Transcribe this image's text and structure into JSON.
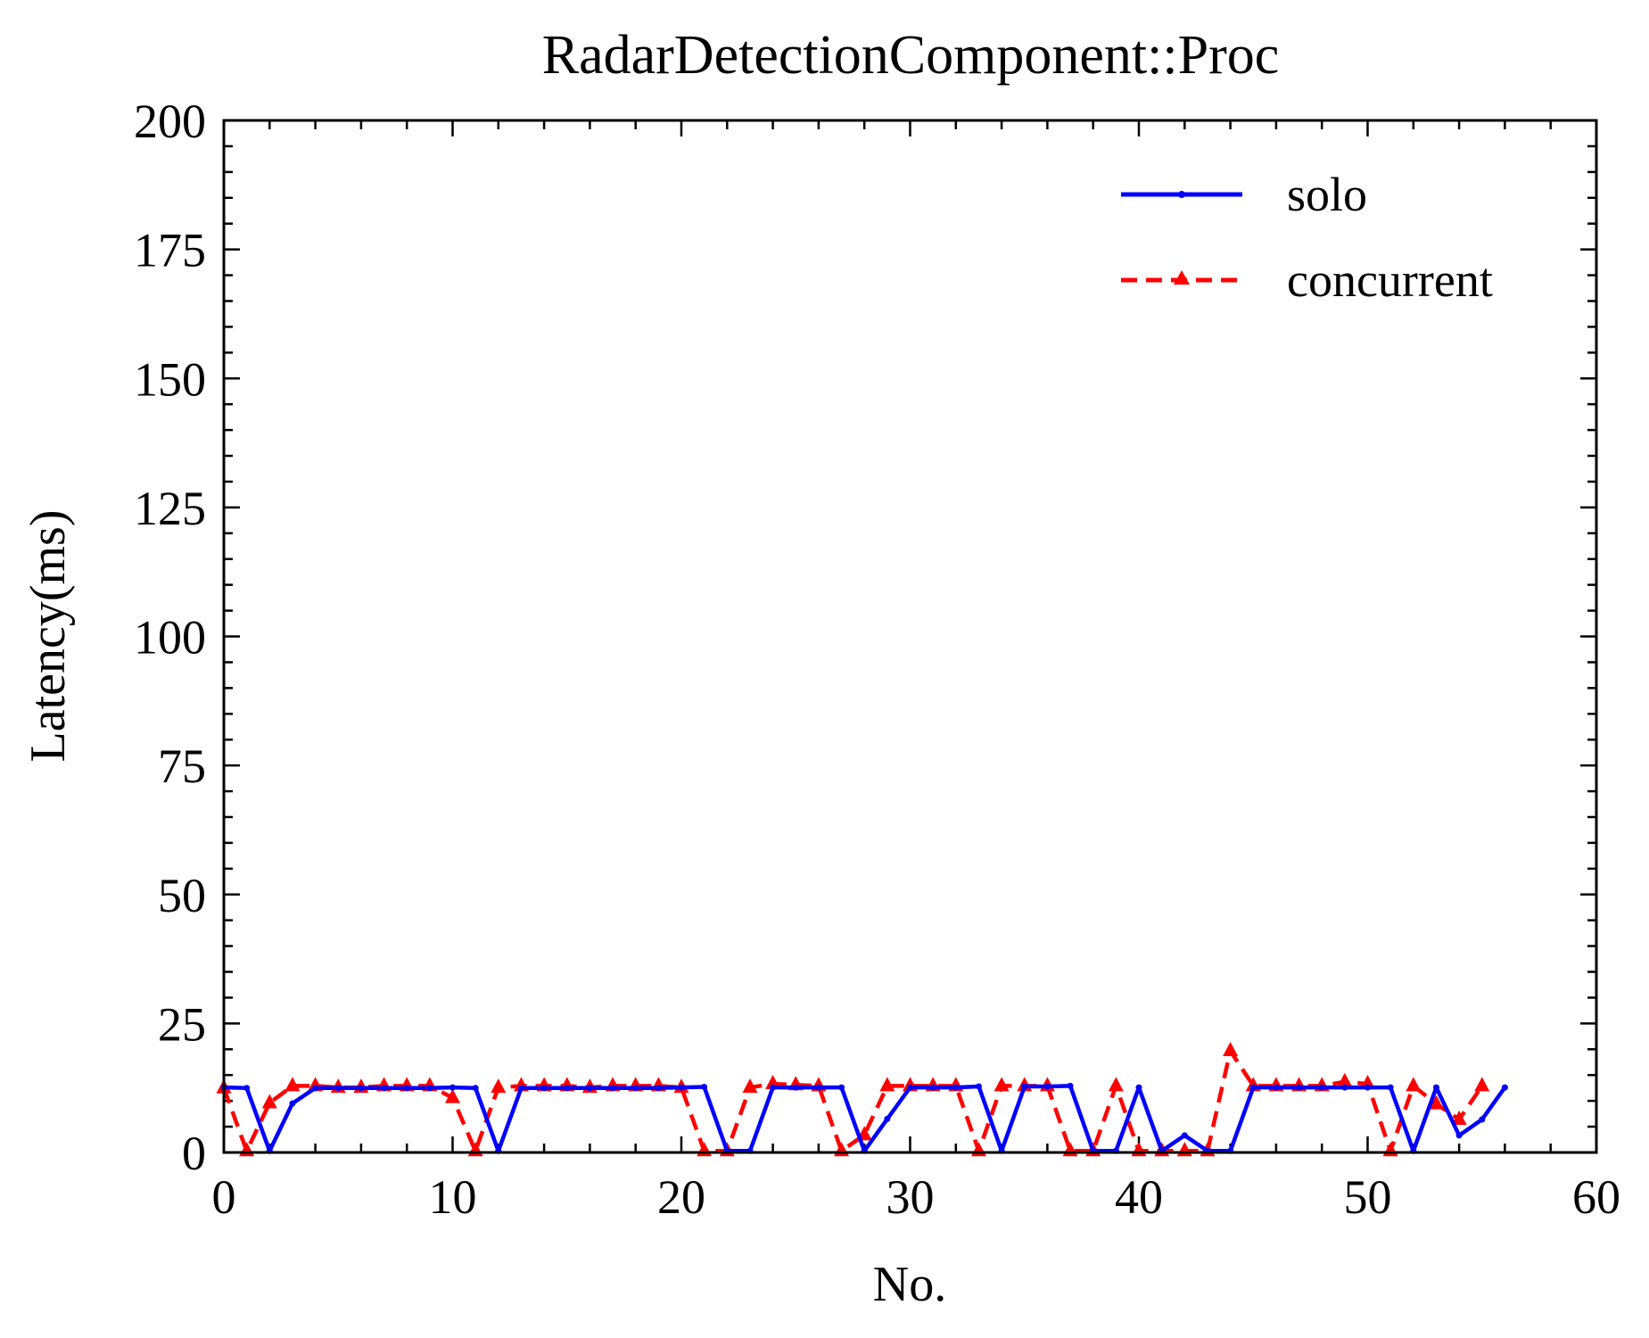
{
  "chart_data": {
    "type": "line",
    "title": "RadarDetectionComponent::Proc",
    "xlabel": "No.",
    "ylabel": "Latency(ms)",
    "xlim": [
      0,
      60
    ],
    "ylim": [
      0,
      200
    ],
    "xticks": [
      0,
      10,
      20,
      30,
      40,
      50,
      60
    ],
    "yticks": [
      0,
      25,
      50,
      75,
      100,
      125,
      150,
      175,
      200
    ],
    "x_minor_step": 2,
    "y_minor_step": 5,
    "grid": false,
    "legend_position": "top-right",
    "series": [
      {
        "name": "solo",
        "color": "#0000ff",
        "line_style": "solid",
        "marker": "dot",
        "values": [
          12.6,
          12.5,
          0.3,
          9.5,
          12.5,
          12.5,
          12.5,
          12.5,
          12.5,
          12.5,
          12.6,
          12.5,
          0.3,
          12.5,
          12.5,
          12.5,
          12.5,
          12.5,
          12.5,
          12.5,
          12.6,
          12.7,
          0.3,
          0.3,
          12.6,
          12.6,
          12.6,
          12.6,
          0.3,
          6.5,
          12.6,
          12.6,
          12.6,
          12.8,
          0.3,
          12.8,
          12.8,
          12.9,
          0.3,
          0.3,
          12.6,
          0.3,
          3.3,
          0.3,
          0.3,
          12.6,
          12.6,
          12.6,
          12.6,
          12.6,
          12.6,
          12.6,
          0.3,
          12.6,
          3.3,
          6.4,
          12.6
        ]
      },
      {
        "name": "concurrent",
        "color": "#ff0000",
        "line_style": "dashed",
        "marker": "triangle",
        "values": [
          12.5,
          0.3,
          9.6,
          12.9,
          12.9,
          12.6,
          12.6,
          12.9,
          12.9,
          12.9,
          10.6,
          0.3,
          12.6,
          12.9,
          12.9,
          12.9,
          12.6,
          12.9,
          12.9,
          12.9,
          12.6,
          0.3,
          0.3,
          12.6,
          13.3,
          13.1,
          12.9,
          0.3,
          3.4,
          12.9,
          12.9,
          12.9,
          12.9,
          0.3,
          12.9,
          12.9,
          12.9,
          0.3,
          0.3,
          12.9,
          0.3,
          0.3,
          0.3,
          0.3,
          19.7,
          12.9,
          12.9,
          12.9,
          12.9,
          13.7,
          13.3,
          0.3,
          12.9,
          9.4,
          6.4,
          12.9
        ]
      }
    ]
  }
}
